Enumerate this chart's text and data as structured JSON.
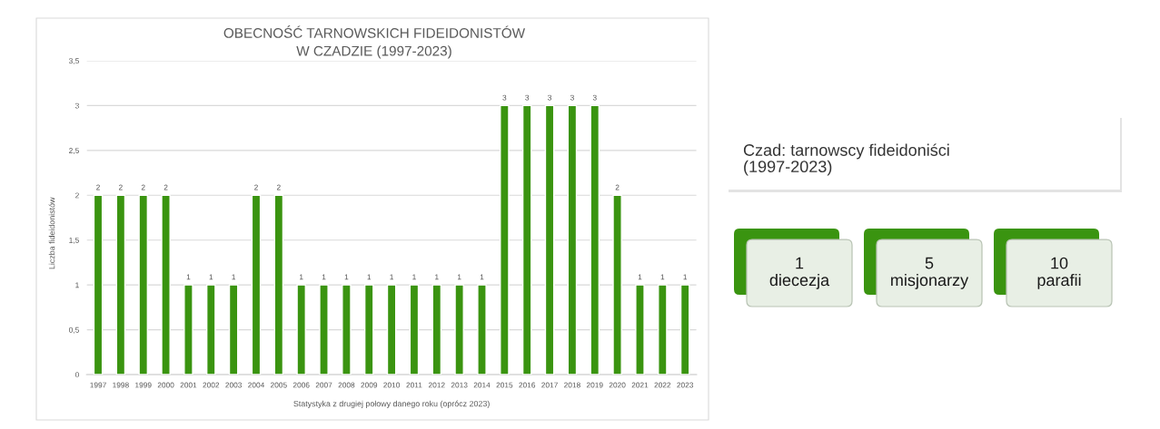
{
  "chart_data": [
    {
      "type": "bar",
      "title": "OBECNOŚĆ TARNOWSKICH FIDEIDONISTÓW\nW CZADZIE (1997-2023)",
      "xlabel": "Statystyka z drugiej połowy danego roku (oprócz 2023)",
      "ylabel": "Liczba fideidonistów",
      "categories": [
        "1997",
        "1998",
        "1999",
        "2000",
        "2001",
        "2002",
        "2003",
        "2004",
        "2005",
        "2006",
        "2007",
        "2008",
        "2009",
        "2010",
        "2011",
        "2012",
        "2013",
        "2014",
        "2015",
        "2016",
        "2017",
        "2018",
        "2019",
        "2020",
        "2021",
        "2022",
        "2023"
      ],
      "values": [
        2,
        2,
        2,
        2,
        1,
        1,
        1,
        2,
        2,
        1,
        1,
        1,
        1,
        1,
        1,
        1,
        1,
        1,
        3,
        3,
        3,
        3,
        3,
        2,
        1,
        1,
        1
      ],
      "color": "#3a9410",
      "ylim": [
        0,
        3.5
      ],
      "yticks": [
        0,
        {
          "value": 0.5,
          "label": "0,5"
        },
        1,
        {
          "value": 1.5,
          "label": "1,5"
        },
        2,
        {
          "value": 2.5,
          "label": "2,5"
        },
        3,
        {
          "value": 3.5,
          "label": "3,5"
        }
      ],
      "grid": "y",
      "data_labels": true
    },
    {
      "type": "other",
      "title": "Czad: tarnowscy fideidoniści\n(1997-2023)",
      "annotations": [
        "1\ndiecezja",
        "5\nmisjonarzy",
        "10\nparafii"
      ]
    }
  ]
}
